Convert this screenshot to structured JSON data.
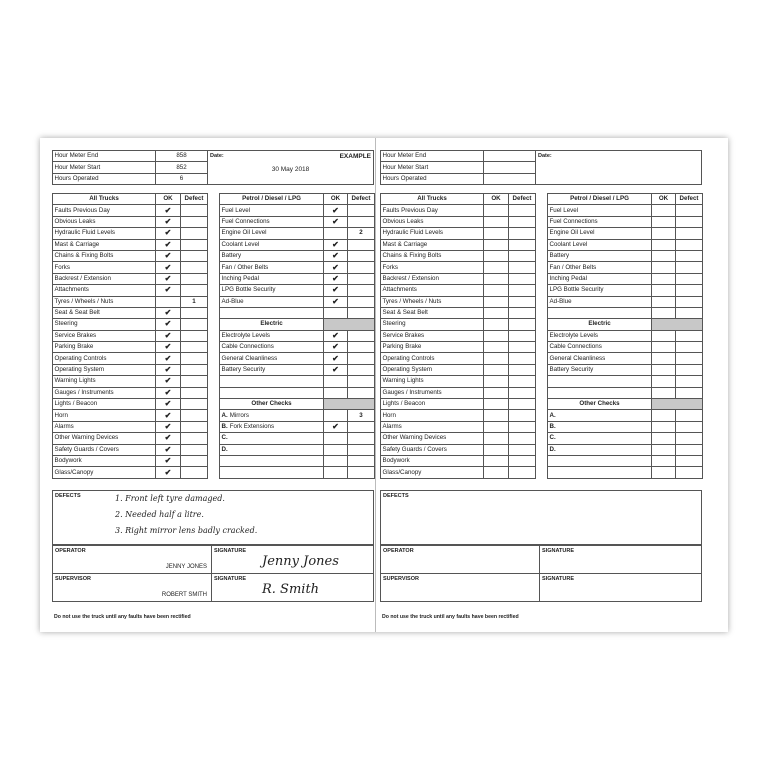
{
  "form": {
    "hour_meter_end": "Hour Meter End",
    "hour_meter_start": "Hour Meter Start",
    "hours_operated": "Hours Operated",
    "date": "Date:",
    "all_trucks": "All Trucks",
    "petrol": "Petrol / Diesel / LPG",
    "ok": "OK",
    "defect": "Defect",
    "electric": "Electric",
    "other_checks": "Other Checks",
    "defects": "DEFECTS",
    "operator": "OPERATOR",
    "supervisor": "SUPERVISOR",
    "signature": "SIGNATURE",
    "footer": "Do not use the truck until any faults have been rectified",
    "all_items": [
      "Faults Previous Day",
      "Obvious Leaks",
      "Hydraulic Fluid Levels",
      "Mast & Carriage",
      "Chains & Fixing Bolts",
      "Forks",
      "Backrest / Extension",
      "Attachments",
      "Tyres / Wheels / Nuts",
      "Seat & Seat Belt",
      "Steering",
      "Service Brakes",
      "Parking Brake",
      "Operating Controls",
      "Operating System",
      "Warning Lights",
      "Gauges / Instruments",
      "Lights / Beacon",
      "Horn",
      "Alarms",
      "Other Warning Devices",
      "Safety Guards / Covers",
      "Bodywork",
      "Glass/Canopy"
    ],
    "petrol_items": [
      "Fuel Level",
      "Fuel Connections",
      "Engine Oil Level",
      "Coolant Level",
      "Battery",
      "Fan / Other Belts",
      "Inching Pedal",
      "LPG Bottle Security",
      "Ad-Blue"
    ],
    "electric_items": [
      "Electrolyte Levels",
      "Cable Connections",
      "General Cleanliness",
      "Battery Security"
    ],
    "other_items": [
      "A.",
      "B.",
      "C.",
      "D."
    ]
  },
  "check_mark": "✔",
  "pages": [
    {
      "hour_meter_end": "858",
      "hour_meter_start": "852",
      "hours_operated": "6",
      "date_value": "30 May 2018",
      "watermark": "EXAMPLE",
      "all_ok": [
        true,
        true,
        true,
        true,
        true,
        true,
        true,
        true,
        false,
        true,
        true,
        true,
        true,
        true,
        true,
        true,
        true,
        true,
        true,
        true,
        true,
        true,
        true,
        true
      ],
      "all_defect": [
        "",
        "",
        "",
        "",
        "",
        "",
        "",
        "",
        "1",
        "",
        "",
        "",
        "",
        "",
        "",
        "",
        "",
        "",
        "",
        "",
        "",
        "",
        "",
        ""
      ],
      "petrol_ok": [
        true,
        true,
        false,
        true,
        true,
        true,
        true,
        true,
        true
      ],
      "petrol_defect": [
        "",
        "",
        "2",
        "",
        "",
        "",
        "",
        "",
        ""
      ],
      "electric_ok": [
        true,
        true,
        true,
        true
      ],
      "electric_defect": [
        "",
        "",
        "",
        ""
      ],
      "other_names": [
        "Mirrors",
        "Fork Extensions",
        "",
        ""
      ],
      "other_ok": [
        false,
        true,
        false,
        false
      ],
      "other_defect": [
        "3",
        "",
        "",
        ""
      ],
      "defects": [
        "1. Front left tyre damaged.",
        "2. Needed half a litre.",
        "3. Right mirror lens badly cracked."
      ],
      "operator": "JENNY JONES",
      "operator_signature": "Jenny Jones",
      "supervisor": "ROBERT SMITH",
      "supervisor_signature": "R. Smith"
    },
    {
      "hour_meter_end": "",
      "hour_meter_start": "",
      "hours_operated": "",
      "date_value": "",
      "watermark": "",
      "all_ok": [],
      "all_defect": [],
      "petrol_ok": [],
      "petrol_defect": [],
      "electric_ok": [],
      "electric_defect": [],
      "other_names": [
        "",
        "",
        "",
        ""
      ],
      "other_ok": [],
      "other_defect": [],
      "defects": [],
      "operator": "",
      "operator_signature": "",
      "supervisor": "",
      "supervisor_signature": ""
    }
  ]
}
